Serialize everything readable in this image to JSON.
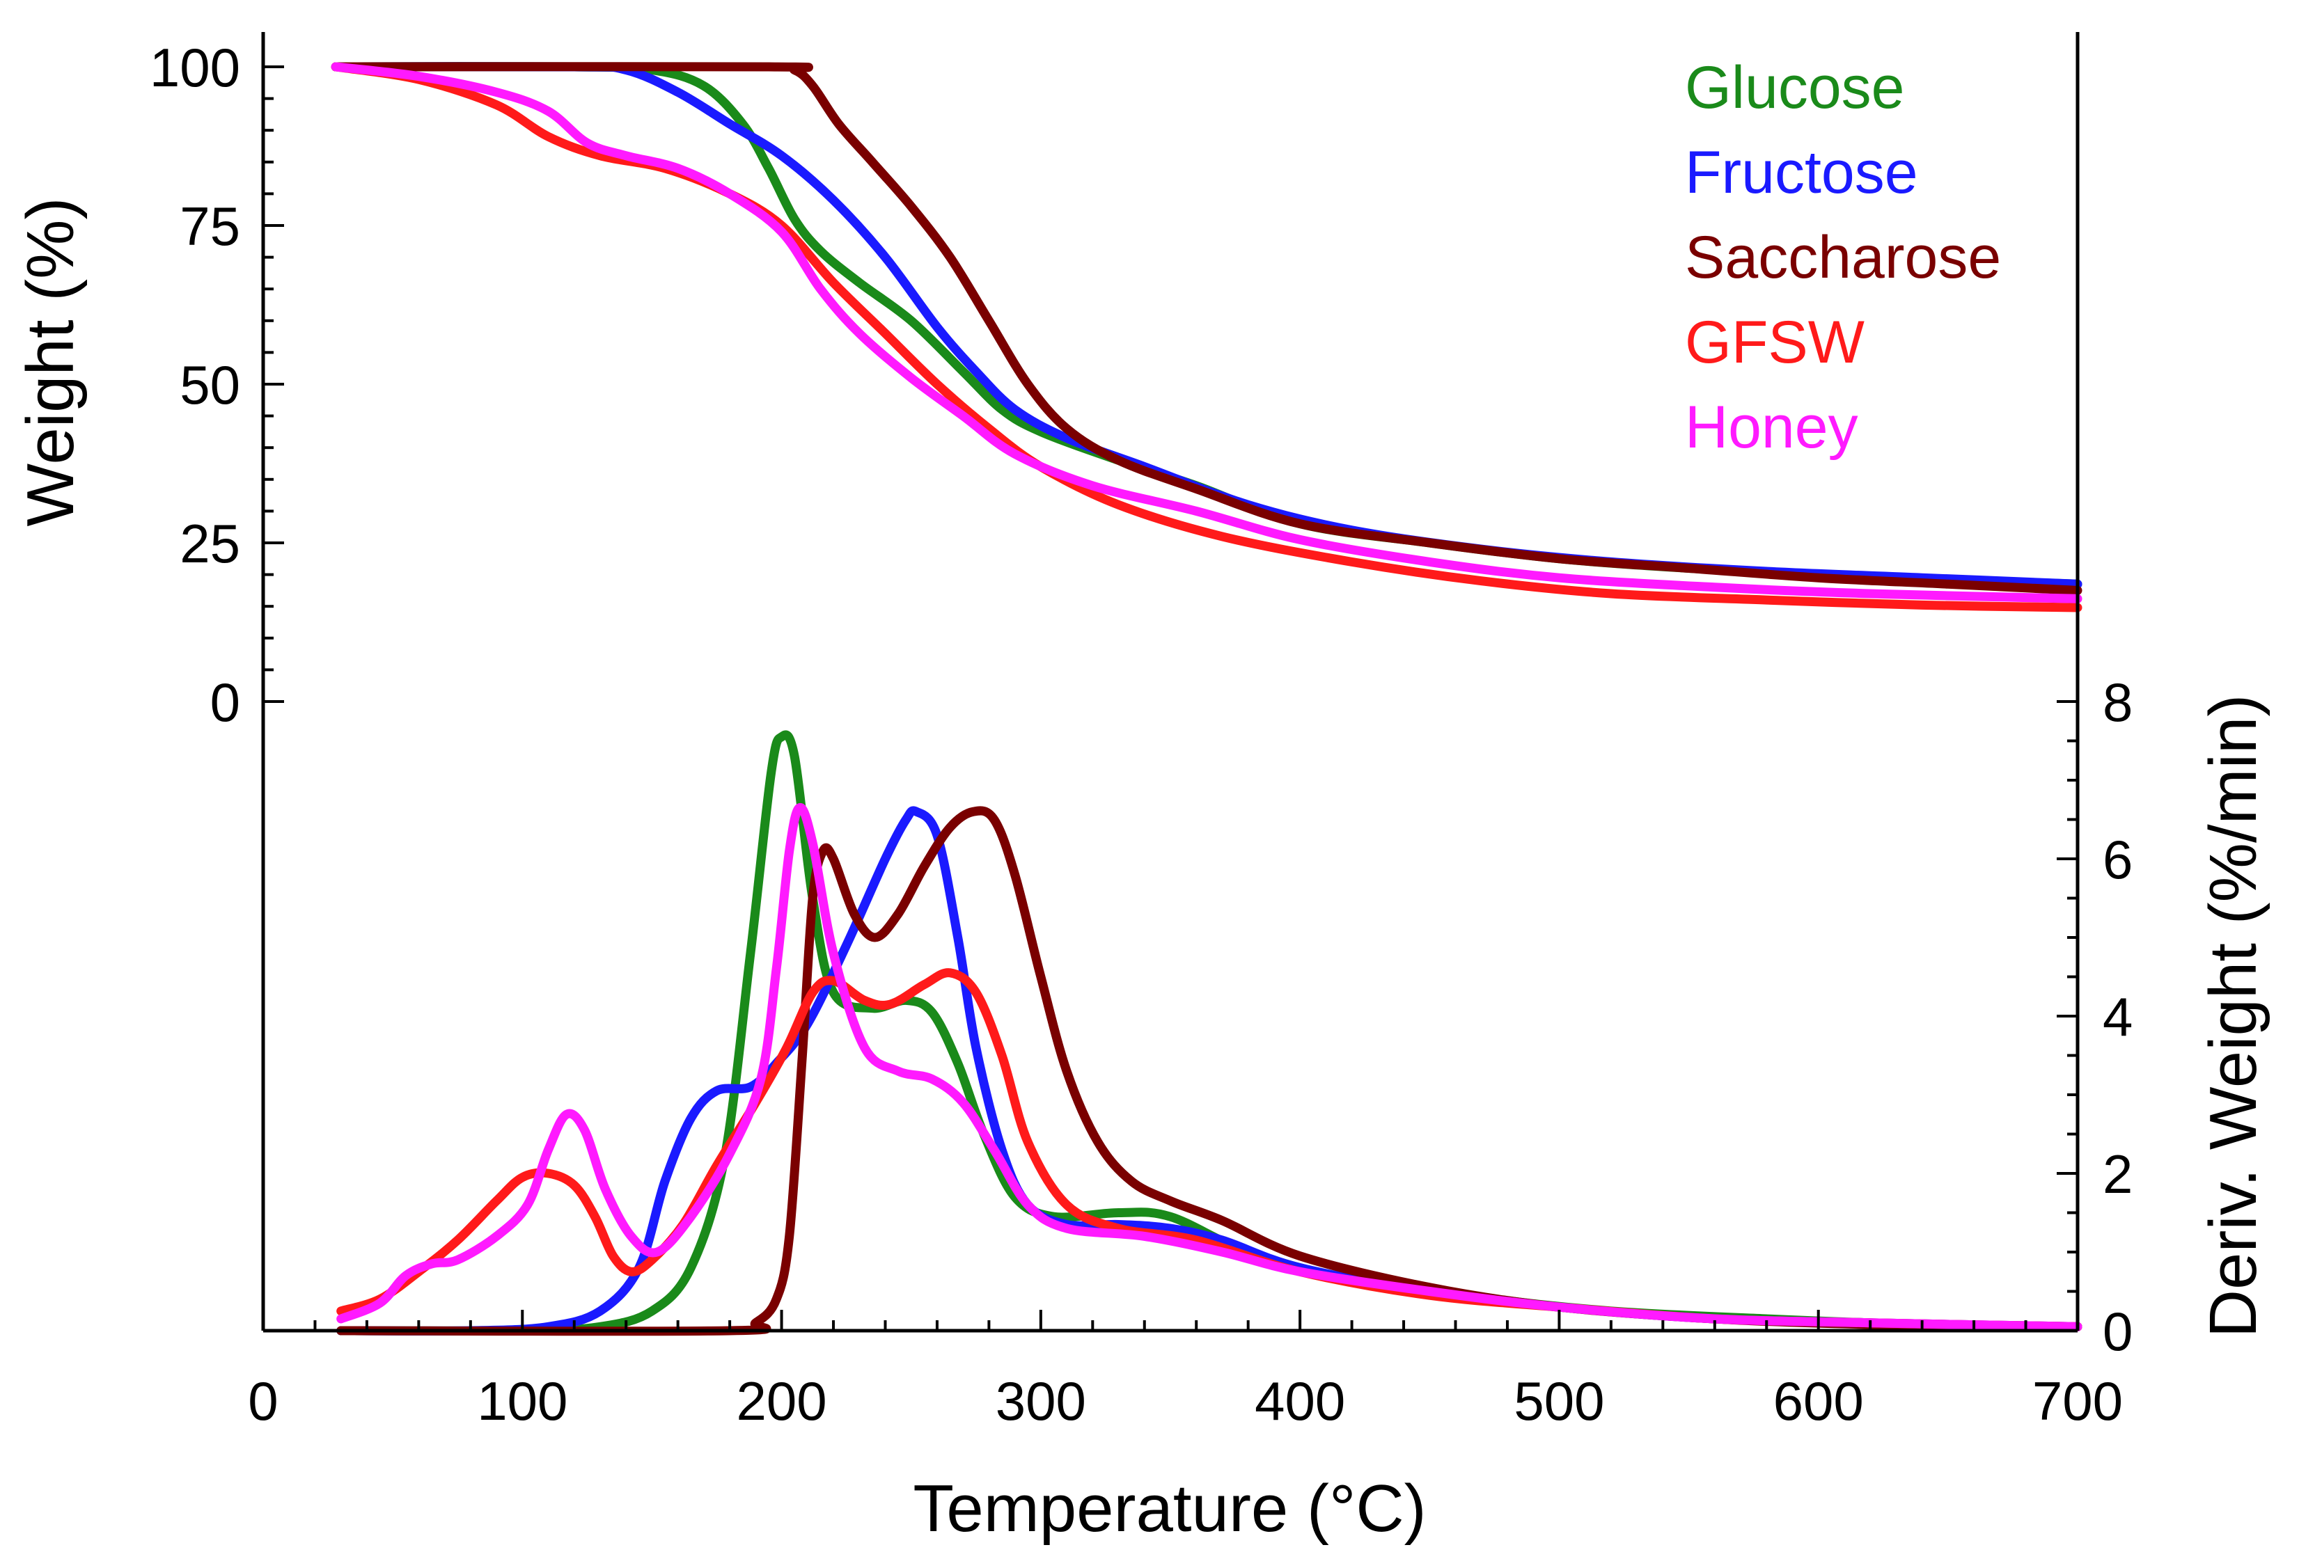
{
  "chart_data": {
    "type": "line",
    "xlabel": "Temperature (°C)",
    "xlim": [
      0,
      700
    ],
    "xticks": [
      0,
      100,
      200,
      300,
      400,
      500,
      600,
      700
    ],
    "panels": {
      "tga": {
        "ylabel": "Weight (%)",
        "ylim": [
          0,
          100
        ],
        "yticks": [
          0,
          25,
          50,
          75,
          100
        ]
      },
      "dtg": {
        "ylabel": "Deriv. Weight (%/min)",
        "ylim": [
          0,
          8
        ],
        "yticks": [
          0,
          2,
          4,
          6,
          8
        ]
      }
    },
    "legend": {
      "position": "top-right"
    },
    "series": [
      {
        "name": "Glucose",
        "color": "#1a8a1a",
        "weight": [
          [
            28,
            100
          ],
          [
            120,
            100
          ],
          [
            150,
            99.5
          ],
          [
            170,
            97
          ],
          [
            185,
            91
          ],
          [
            195,
            84
          ],
          [
            205,
            76
          ],
          [
            215,
            71
          ],
          [
            230,
            66
          ],
          [
            250,
            60
          ],
          [
            270,
            52
          ],
          [
            285,
            46
          ],
          [
            300,
            42.5
          ],
          [
            330,
            38
          ],
          [
            360,
            34
          ],
          [
            400,
            28
          ],
          [
            450,
            25
          ],
          [
            500,
            22.5
          ],
          [
            550,
            21
          ],
          [
            600,
            20
          ],
          [
            650,
            19.2
          ],
          [
            700,
            18.5
          ]
        ],
        "deriv": [
          [
            30,
            0
          ],
          [
            100,
            0
          ],
          [
            130,
            0.05
          ],
          [
            150,
            0.25
          ],
          [
            165,
            0.8
          ],
          [
            178,
            2.2
          ],
          [
            188,
            4.8
          ],
          [
            196,
            7.1
          ],
          [
            200,
            7.55
          ],
          [
            205,
            7.3
          ],
          [
            212,
            5.5
          ],
          [
            220,
            4.3
          ],
          [
            235,
            4.1
          ],
          [
            248,
            4.2
          ],
          [
            258,
            4.05
          ],
          [
            268,
            3.4
          ],
          [
            278,
            2.5
          ],
          [
            290,
            1.7
          ],
          [
            305,
            1.45
          ],
          [
            330,
            1.5
          ],
          [
            350,
            1.45
          ],
          [
            380,
            1.0
          ],
          [
            420,
            0.65
          ],
          [
            470,
            0.42
          ],
          [
            520,
            0.25
          ],
          [
            580,
            0.15
          ],
          [
            640,
            0.08
          ],
          [
            700,
            0.05
          ]
        ]
      },
      {
        "name": "Fructose",
        "color": "#1a1aff",
        "weight": [
          [
            28,
            100
          ],
          [
            120,
            100
          ],
          [
            140,
            99.5
          ],
          [
            160,
            96
          ],
          [
            180,
            91
          ],
          [
            200,
            86
          ],
          [
            220,
            79
          ],
          [
            240,
            70
          ],
          [
            260,
            59
          ],
          [
            275,
            52
          ],
          [
            290,
            46
          ],
          [
            310,
            41.5
          ],
          [
            340,
            37
          ],
          [
            380,
            31
          ],
          [
            420,
            27
          ],
          [
            470,
            24
          ],
          [
            520,
            22
          ],
          [
            580,
            20.5
          ],
          [
            640,
            19.5
          ],
          [
            700,
            18.5
          ]
        ],
        "deriv": [
          [
            30,
            0
          ],
          [
            80,
            0
          ],
          [
            110,
            0.05
          ],
          [
            130,
            0.25
          ],
          [
            145,
            0.8
          ],
          [
            155,
            1.9
          ],
          [
            165,
            2.7
          ],
          [
            175,
            3.05
          ],
          [
            188,
            3.1
          ],
          [
            198,
            3.4
          ],
          [
            210,
            3.9
          ],
          [
            225,
            4.9
          ],
          [
            240,
            6.0
          ],
          [
            248,
            6.5
          ],
          [
            252,
            6.6
          ],
          [
            260,
            6.3
          ],
          [
            268,
            5.0
          ],
          [
            275,
            3.6
          ],
          [
            285,
            2.3
          ],
          [
            295,
            1.6
          ],
          [
            310,
            1.35
          ],
          [
            330,
            1.35
          ],
          [
            350,
            1.3
          ],
          [
            370,
            1.15
          ],
          [
            400,
            0.8
          ],
          [
            450,
            0.5
          ],
          [
            500,
            0.3
          ],
          [
            560,
            0.15
          ],
          [
            620,
            0.1
          ],
          [
            700,
            0.05
          ]
        ]
      },
      {
        "name": "Saccharose",
        "color": "#7a0000",
        "weight": [
          [
            28,
            100
          ],
          [
            195,
            100
          ],
          [
            205,
            99.5
          ],
          [
            212,
            97
          ],
          [
            222,
            91
          ],
          [
            235,
            85
          ],
          [
            250,
            78
          ],
          [
            265,
            70
          ],
          [
            280,
            60
          ],
          [
            295,
            50
          ],
          [
            310,
            43
          ],
          [
            330,
            38
          ],
          [
            360,
            33.5
          ],
          [
            400,
            28
          ],
          [
            450,
            25
          ],
          [
            500,
            22.5
          ],
          [
            550,
            21
          ],
          [
            600,
            19.5
          ],
          [
            650,
            18.5
          ],
          [
            700,
            17.5
          ]
        ],
        "deriv": [
          [
            30,
            0
          ],
          [
            180,
            0
          ],
          [
            190,
            0.1
          ],
          [
            198,
            0.4
          ],
          [
            203,
            1.2
          ],
          [
            208,
            3.5
          ],
          [
            212,
            5.5
          ],
          [
            216,
            6.1
          ],
          [
            220,
            6.0
          ],
          [
            228,
            5.3
          ],
          [
            236,
            5.0
          ],
          [
            245,
            5.3
          ],
          [
            255,
            5.9
          ],
          [
            265,
            6.4
          ],
          [
            274,
            6.6
          ],
          [
            282,
            6.5
          ],
          [
            290,
            5.8
          ],
          [
            300,
            4.5
          ],
          [
            310,
            3.3
          ],
          [
            322,
            2.4
          ],
          [
            335,
            1.9
          ],
          [
            350,
            1.65
          ],
          [
            370,
            1.4
          ],
          [
            400,
            0.95
          ],
          [
            450,
            0.55
          ],
          [
            500,
            0.3
          ],
          [
            560,
            0.15
          ],
          [
            620,
            0.08
          ],
          [
            700,
            0.05
          ]
        ]
      },
      {
        "name": "GFSW",
        "color": "#ff1a1a",
        "weight": [
          [
            28,
            100
          ],
          [
            60,
            98
          ],
          [
            90,
            94
          ],
          [
            110,
            89
          ],
          [
            130,
            86
          ],
          [
            155,
            84
          ],
          [
            180,
            80
          ],
          [
            200,
            75
          ],
          [
            220,
            66
          ],
          [
            240,
            58
          ],
          [
            260,
            50
          ],
          [
            280,
            43
          ],
          [
            300,
            37
          ],
          [
            330,
            31
          ],
          [
            370,
            26
          ],
          [
            420,
            22
          ],
          [
            470,
            19
          ],
          [
            520,
            17
          ],
          [
            580,
            16
          ],
          [
            640,
            15.2
          ],
          [
            700,
            14.8
          ]
        ],
        "deriv": [
          [
            30,
            0.25
          ],
          [
            45,
            0.4
          ],
          [
            60,
            0.75
          ],
          [
            75,
            1.15
          ],
          [
            90,
            1.65
          ],
          [
            100,
            1.95
          ],
          [
            110,
            2.0
          ],
          [
            120,
            1.85
          ],
          [
            128,
            1.45
          ],
          [
            135,
            0.95
          ],
          [
            142,
            0.75
          ],
          [
            150,
            0.9
          ],
          [
            162,
            1.35
          ],
          [
            175,
            2.1
          ],
          [
            190,
            2.9
          ],
          [
            202,
            3.6
          ],
          [
            212,
            4.3
          ],
          [
            220,
            4.45
          ],
          [
            232,
            4.2
          ],
          [
            242,
            4.15
          ],
          [
            255,
            4.4
          ],
          [
            265,
            4.55
          ],
          [
            275,
            4.3
          ],
          [
            285,
            3.5
          ],
          [
            295,
            2.4
          ],
          [
            310,
            1.6
          ],
          [
            330,
            1.3
          ],
          [
            360,
            1.15
          ],
          [
            400,
            0.75
          ],
          [
            450,
            0.45
          ],
          [
            500,
            0.3
          ],
          [
            560,
            0.15
          ],
          [
            620,
            0.1
          ],
          [
            700,
            0.05
          ]
        ]
      },
      {
        "name": "Honey",
        "color": "#ff1aff",
        "weight": [
          [
            28,
            100
          ],
          [
            60,
            98.5
          ],
          [
            90,
            96
          ],
          [
            110,
            93
          ],
          [
            125,
            88
          ],
          [
            140,
            86
          ],
          [
            160,
            84
          ],
          [
            180,
            80
          ],
          [
            200,
            74
          ],
          [
            215,
            65
          ],
          [
            230,
            58
          ],
          [
            250,
            51
          ],
          [
            270,
            45
          ],
          [
            290,
            39
          ],
          [
            320,
            34
          ],
          [
            360,
            30
          ],
          [
            400,
            25.5
          ],
          [
            450,
            22
          ],
          [
            500,
            19.5
          ],
          [
            560,
            18
          ],
          [
            620,
            17
          ],
          [
            700,
            16.2
          ]
        ],
        "deriv": [
          [
            30,
            0.15
          ],
          [
            45,
            0.35
          ],
          [
            55,
            0.7
          ],
          [
            65,
            0.85
          ],
          [
            75,
            0.9
          ],
          [
            90,
            1.2
          ],
          [
            102,
            1.6
          ],
          [
            110,
            2.3
          ],
          [
            117,
            2.75
          ],
          [
            124,
            2.55
          ],
          [
            132,
            1.8
          ],
          [
            142,
            1.2
          ],
          [
            152,
            1.0
          ],
          [
            165,
            1.45
          ],
          [
            180,
            2.25
          ],
          [
            192,
            3.2
          ],
          [
            198,
            4.6
          ],
          [
            203,
            6.1
          ],
          [
            207,
            6.65
          ],
          [
            212,
            6.2
          ],
          [
            220,
            4.8
          ],
          [
            232,
            3.6
          ],
          [
            245,
            3.3
          ],
          [
            258,
            3.2
          ],
          [
            270,
            2.9
          ],
          [
            282,
            2.3
          ],
          [
            295,
            1.6
          ],
          [
            310,
            1.3
          ],
          [
            340,
            1.2
          ],
          [
            370,
            1.0
          ],
          [
            400,
            0.75
          ],
          [
            450,
            0.5
          ],
          [
            500,
            0.3
          ],
          [
            560,
            0.15
          ],
          [
            620,
            0.1
          ],
          [
            700,
            0.05
          ]
        ]
      }
    ]
  }
}
